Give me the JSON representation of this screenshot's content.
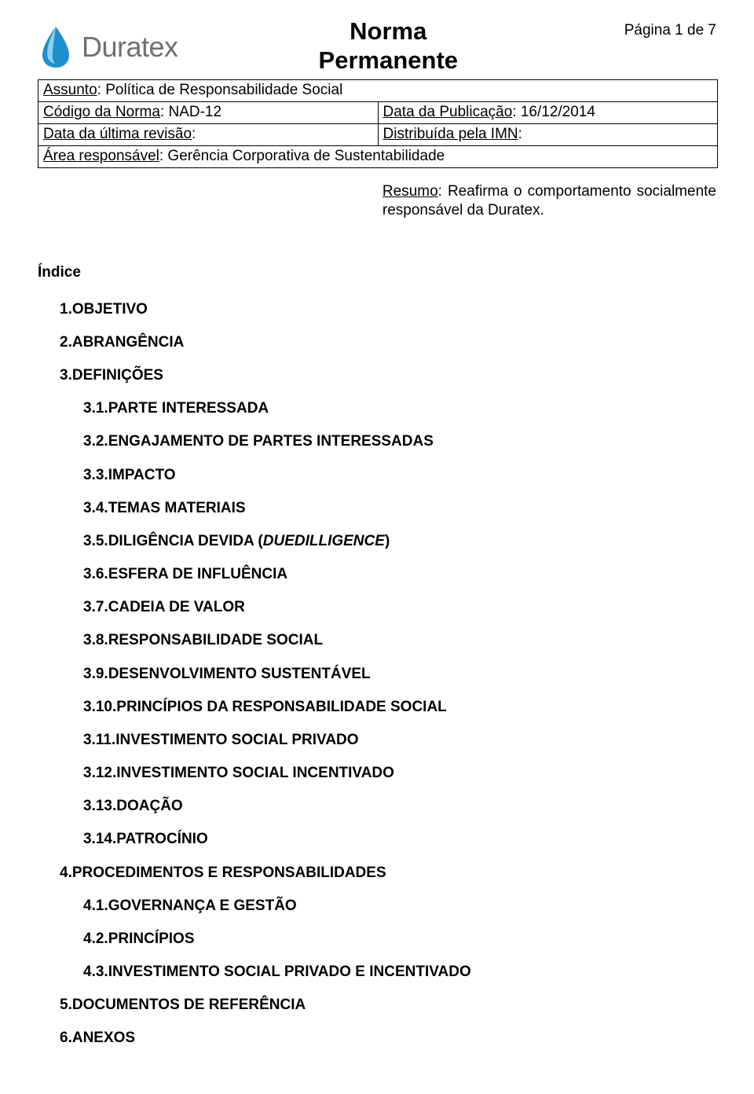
{
  "header": {
    "logo_word": "Duratex",
    "title_line1": "Norma",
    "title_line2": "Permanente",
    "page_indicator": "Página 1 de 7",
    "logo_colors": {
      "drop_fill": "#1d8fce",
      "drop_highlight": "#8fcff0",
      "word_color": "#6f6f6f"
    }
  },
  "meta": {
    "assunto_label": "Assunto",
    "assunto_value": ": Política de Responsabilidade Social",
    "codigo_label": "Código da Norma",
    "codigo_value": ": NAD-12",
    "data_pub_label": "Data da Publicação",
    "data_pub_value": ": 16/12/2014",
    "data_rev_label": "Data da última revisão",
    "data_rev_value": ":",
    "distrib_label": "Distribuída pela IMN",
    "distrib_value": ":",
    "area_label": "Área responsável",
    "area_value": ": Gerência Corporativa de Sustentabilidade"
  },
  "summary": {
    "label": "Resumo",
    "text": ": Reafirma o comportamento socialmente responsável da Duratex."
  },
  "index_title": "Índice",
  "toc": [
    {
      "level": 1,
      "num": "1.",
      "text": "OBJETIVO"
    },
    {
      "level": 1,
      "num": "2.",
      "text": "ABRANGÊNCIA"
    },
    {
      "level": 1,
      "num": "3.",
      "text": "DEFINIÇÕES"
    },
    {
      "level": 2,
      "num": "3.1.",
      "text": "PARTE INTERESSADA"
    },
    {
      "level": 2,
      "num": "3.2.",
      "text": "ENGAJAMENTO DE PARTES INTERESSADAS"
    },
    {
      "level": 2,
      "num": "3.3.",
      "text": "IMPACTO"
    },
    {
      "level": 2,
      "num": "3.4.",
      "text": "TEMAS MATERIAIS"
    },
    {
      "level": 2,
      "num": "3.5.",
      "text_pre": "DILIGÊNCIA DEVIDA (",
      "text_italic": "DUEDILLIGENCE",
      "text_post": ")"
    },
    {
      "level": 2,
      "num": "3.6.",
      "text": "ESFERA DE INFLUÊNCIA"
    },
    {
      "level": 2,
      "num": "3.7.",
      "text": "CADEIA DE VALOR"
    },
    {
      "level": 2,
      "num": "3.8.",
      "text": "RESPONSABILIDADE SOCIAL"
    },
    {
      "level": 2,
      "num": "3.9.",
      "text": "DESENVOLVIMENTO SUSTENTÁVEL"
    },
    {
      "level": 2,
      "num": "3.10.",
      "text": "PRINCÍPIOS DA RESPONSABILIDADE SOCIAL"
    },
    {
      "level": 2,
      "num": "3.11.",
      "text": "INVESTIMENTO SOCIAL PRIVADO"
    },
    {
      "level": 2,
      "num": "3.12.",
      "text": "INVESTIMENTO SOCIAL INCENTIVADO"
    },
    {
      "level": 2,
      "num": "3.13.",
      "text": "DOAÇÃO"
    },
    {
      "level": 2,
      "num": "3.14.",
      "text": "PATROCÍNIO"
    },
    {
      "level": 1,
      "num": "4.",
      "text": "PROCEDIMENTOS E RESPONSABILIDADES"
    },
    {
      "level": 2,
      "num": "4.1.",
      "text": "GOVERNANÇA E GESTÃO"
    },
    {
      "level": 2,
      "num": "4.2.",
      "text": "PRINCÍPIOS"
    },
    {
      "level": 2,
      "num": "4.3.",
      "text": "INVESTIMENTO SOCIAL PRIVADO E INCENTIVADO"
    },
    {
      "level": 1,
      "num": "5.",
      "text": "DOCUMENTOS DE REFERÊNCIA"
    },
    {
      "level": 1,
      "num": "6.",
      "text": "ANEXOS"
    }
  ]
}
